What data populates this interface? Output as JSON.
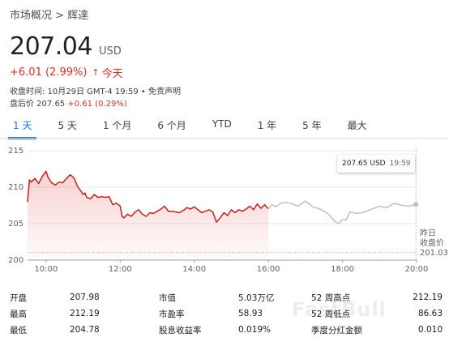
{
  "breadcrumb": "市场概况 > 辉達",
  "price": {
    "value": "207.04",
    "currency": "USD"
  },
  "change": {
    "text": "+6.01 (2.99%)",
    "arrow": "↑",
    "period": "今天"
  },
  "meta": {
    "text": "收盘时间: 10月29日 GMT-4 19:59 • 免责声明"
  },
  "after_hours": {
    "label": "盘后价 207.65",
    "change": "+0.61 (0.29%)"
  },
  "tabs": [
    {
      "label": "1 天"
    },
    {
      "label": "5 天"
    },
    {
      "label": "1 个月"
    },
    {
      "label": "6 个月"
    },
    {
      "label": "YTD"
    },
    {
      "label": "1 年"
    },
    {
      "label": "5 年"
    },
    {
      "label": "最大"
    }
  ],
  "tooltip": {
    "price": "207.65 USD",
    "time": "19:59"
  },
  "colors": {
    "accent": "#1a73e8",
    "up": "#d93025",
    "line": "#c5221f",
    "after": "#bdc1c6"
  },
  "chart_data": {
    "type": "line",
    "ylim": [
      200,
      215
    ],
    "xlim": [
      9.5,
      20
    ],
    "yticks": [
      200,
      205,
      210,
      215
    ],
    "xticks": [
      "10:00",
      "12:00",
      "14:00",
      "16:00",
      "18:00",
      "20:00"
    ],
    "prev_close": {
      "label1": "昨日",
      "label2": "收盘价",
      "value": 201.03
    },
    "series": [
      {
        "session": "regular",
        "x": [
          9.5,
          9.55,
          9.6,
          9.7,
          9.8,
          9.9,
          10.0,
          10.05,
          10.15,
          10.25,
          10.35,
          10.45,
          10.55,
          10.65,
          10.75,
          10.85,
          10.95,
          11.0,
          11.05,
          11.1,
          11.2,
          11.3,
          11.4,
          11.5,
          11.6,
          11.7,
          11.8,
          11.9,
          12.0,
          12.05,
          12.1,
          12.2,
          12.3,
          12.4,
          12.5,
          12.6,
          12.7,
          12.8,
          12.9,
          13.0,
          13.1,
          13.2,
          13.3,
          13.4,
          13.5,
          13.6,
          13.7,
          13.8,
          13.9,
          14.0,
          14.1,
          14.2,
          14.3,
          14.4,
          14.5,
          14.6,
          14.7,
          14.8,
          14.9,
          15.0,
          15.1,
          15.2,
          15.3,
          15.4,
          15.5,
          15.6,
          15.7,
          15.8,
          15.9,
          16.0
        ],
        "y": [
          208.0,
          211.0,
          210.7,
          211.2,
          210.5,
          211.5,
          212.19,
          211.4,
          210.6,
          210.3,
          210.7,
          210.6,
          211.2,
          211.7,
          211.3,
          210.1,
          209.4,
          209.0,
          209.2,
          208.6,
          208.4,
          209.0,
          208.6,
          208.7,
          208.6,
          208.7,
          207.6,
          207.8,
          207.4,
          206.0,
          205.8,
          206.3,
          206.0,
          206.6,
          206.9,
          206.3,
          206.0,
          206.5,
          206.4,
          206.7,
          207.0,
          207.4,
          206.7,
          206.7,
          206.6,
          206.5,
          206.8,
          207.2,
          207.0,
          207.3,
          206.9,
          206.5,
          206.7,
          206.9,
          206.6,
          205.2,
          205.8,
          206.5,
          206.1,
          206.9,
          206.5,
          206.9,
          206.7,
          207.0,
          207.4,
          206.9,
          207.7,
          207.1,
          207.6,
          207.04
        ]
      },
      {
        "session": "after_hours",
        "x": [
          16.0,
          16.1,
          16.2,
          16.3,
          16.4,
          16.6,
          16.8,
          17.0,
          17.2,
          17.4,
          17.6,
          17.8,
          17.9,
          18.0,
          18.1,
          18.2,
          18.4,
          18.6,
          18.8,
          19.0,
          19.2,
          19.4,
          19.6,
          19.8,
          19.983
        ],
        "y": [
          207.04,
          207.6,
          207.3,
          207.7,
          207.9,
          207.8,
          207.4,
          208.1,
          207.3,
          207.0,
          206.4,
          205.3,
          205.0,
          205.6,
          205.5,
          206.6,
          206.4,
          206.6,
          207.0,
          207.4,
          207.2,
          207.8,
          207.5,
          207.4,
          207.65
        ]
      }
    ]
  },
  "stats": [
    [
      {
        "label": "开盘",
        "value": "207.98"
      },
      {
        "label": "市值",
        "value": "5.03万亿"
      },
      {
        "label": "52 周高点",
        "value": "212.19"
      }
    ],
    [
      {
        "label": "最高",
        "value": "212.19"
      },
      {
        "label": "市盈率",
        "value": "58.93"
      },
      {
        "label": "52 周低点",
        "value": "86.63"
      }
    ],
    [
      {
        "label": "最低",
        "value": "204.78"
      },
      {
        "label": "股息收益率",
        "value": "0.019%"
      },
      {
        "label": "季度分红金额",
        "value": "0.010"
      }
    ]
  ],
  "watermark": "FastBull"
}
